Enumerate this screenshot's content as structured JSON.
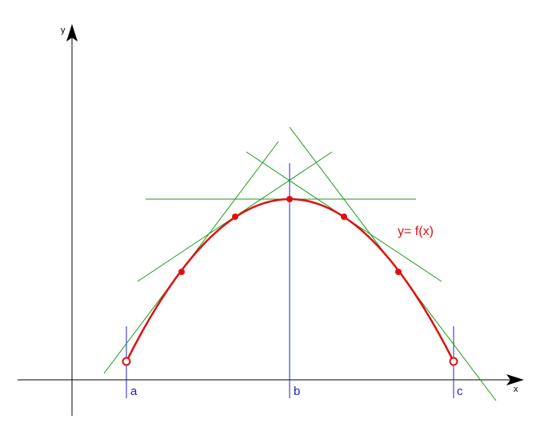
{
  "axes": {
    "x": "x",
    "y": "y"
  },
  "points": {
    "a": "a",
    "b": "b",
    "c": "c"
  },
  "curve_label": "y= f(x)"
}
